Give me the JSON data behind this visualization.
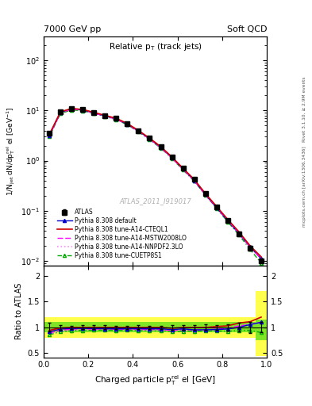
{
  "title_left": "7000 GeV pp",
  "title_right": "Soft QCD",
  "plot_title": "Relative p$_{T}$ (track jets)",
  "xlabel": "Charged particle p$_{T}^{rel}$ el [GeV]",
  "ylabel_main": "1/N$_{jet}$ dN/dp$_{T}^{rel}$ el [GeV$^{-1}$]",
  "ylabel_ratio": "Ratio to ATLAS",
  "watermark": "ATLAS_2011_I919017",
  "right_label_top": "Rivet 3.1.10, ≥ 2.9M events",
  "right_label_mid": "mcplots.cern.ch [arXiv:1306.3436]",
  "x_data": [
    0.025,
    0.075,
    0.125,
    0.175,
    0.225,
    0.275,
    0.325,
    0.375,
    0.425,
    0.475,
    0.525,
    0.575,
    0.625,
    0.675,
    0.725,
    0.775,
    0.825,
    0.875,
    0.925,
    0.975
  ],
  "atlas_y": [
    3.5,
    9.5,
    11.0,
    10.5,
    9.2,
    8.0,
    7.0,
    5.5,
    4.0,
    2.8,
    1.9,
    1.2,
    0.7,
    0.42,
    0.22,
    0.12,
    0.065,
    0.035,
    0.018,
    0.01
  ],
  "atlas_yerr": [
    0.3,
    0.4,
    0.4,
    0.4,
    0.35,
    0.3,
    0.25,
    0.2,
    0.15,
    0.1,
    0.07,
    0.05,
    0.03,
    0.02,
    0.012,
    0.006,
    0.004,
    0.003,
    0.002,
    0.001
  ],
  "py_default_y": [
    3.2,
    9.2,
    10.8,
    10.3,
    9.0,
    7.8,
    6.8,
    5.35,
    3.9,
    2.72,
    1.85,
    1.15,
    0.68,
    0.4,
    0.21,
    0.115,
    0.063,
    0.035,
    0.019,
    0.011
  ],
  "py_cteq_y": [
    3.3,
    9.4,
    11.0,
    10.5,
    9.2,
    8.0,
    7.0,
    5.5,
    4.0,
    2.8,
    1.9,
    1.18,
    0.7,
    0.42,
    0.22,
    0.122,
    0.067,
    0.038,
    0.02,
    0.012
  ],
  "py_mstw_y": [
    3.1,
    9.0,
    10.6,
    10.2,
    8.9,
    7.75,
    6.75,
    5.3,
    3.85,
    2.68,
    1.82,
    1.13,
    0.67,
    0.4,
    0.21,
    0.116,
    0.064,
    0.036,
    0.019,
    0.011
  ],
  "py_nnpdf_y": [
    3.0,
    8.8,
    10.4,
    10.0,
    8.8,
    7.65,
    6.65,
    5.25,
    3.8,
    2.65,
    1.8,
    1.12,
    0.66,
    0.395,
    0.208,
    0.115,
    0.063,
    0.036,
    0.019,
    0.011
  ],
  "py_cuetp_y": [
    3.0,
    8.7,
    10.3,
    9.9,
    8.7,
    7.6,
    6.6,
    5.2,
    3.75,
    2.62,
    1.78,
    1.1,
    0.65,
    0.39,
    0.205,
    0.112,
    0.06,
    0.033,
    0.017,
    0.009
  ],
  "color_atlas": "#000000",
  "color_default": "#0000cc",
  "color_cteq": "#cc0000",
  "color_mstw": "#ff00ff",
  "color_nnpdf": "#ff88ff",
  "color_cuetp": "#00aa00",
  "ylim_main": [
    0.008,
    300
  ],
  "ylim_ratio": [
    0.42,
    2.2
  ],
  "xlim": [
    0.0,
    1.0
  ]
}
